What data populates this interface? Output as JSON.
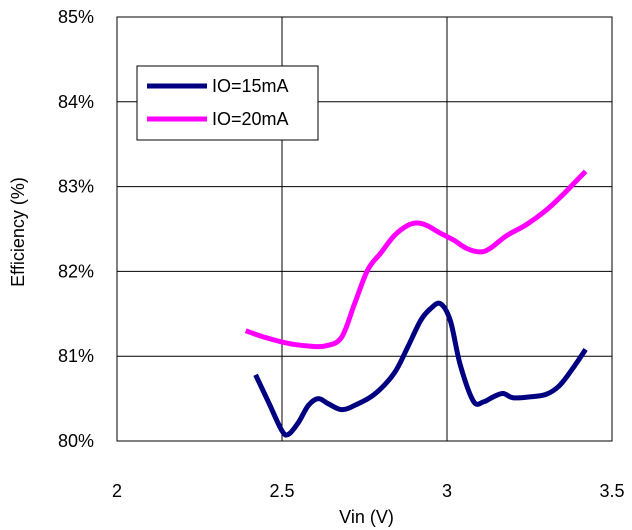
{
  "chart_data": {
    "type": "line",
    "title": "",
    "xlabel": "Vin (V)",
    "ylabel": "Efficiency (%)",
    "xlim": [
      2,
      3.5
    ],
    "ylim": [
      80,
      85
    ],
    "x_ticks": [
      2,
      2.5,
      3,
      3.5
    ],
    "x_tick_labels": [
      "2",
      "2.5",
      "3",
      "3.5"
    ],
    "y_ticks": [
      80,
      81,
      82,
      83,
      84,
      85
    ],
    "y_tick_labels": [
      "80%",
      "81%",
      "82%",
      "83%",
      "84%",
      "85%"
    ],
    "grid": "vertical and horizontal major gridlines",
    "legend_position": "top-left",
    "series": [
      {
        "name": "IO=15mA",
        "color": "#000080",
        "x": [
          2.42,
          2.46,
          2.5,
          2.52,
          2.55,
          2.58,
          2.61,
          2.64,
          2.68,
          2.72,
          2.78,
          2.84,
          2.88,
          2.92,
          2.95,
          2.98,
          3.01,
          3.04,
          3.08,
          3.11,
          3.14,
          3.17,
          3.2,
          3.25,
          3.3,
          3.34,
          3.38,
          3.42
        ],
        "y": [
          80.78,
          80.45,
          80.12,
          80.08,
          80.22,
          80.42,
          80.5,
          80.44,
          80.37,
          80.42,
          80.55,
          80.8,
          81.1,
          81.42,
          81.56,
          81.62,
          81.42,
          80.9,
          80.47,
          80.46,
          80.52,
          80.56,
          80.51,
          80.52,
          80.55,
          80.65,
          80.85,
          81.08
        ]
      },
      {
        "name": "IO=20mA",
        "color": "#FF00FF",
        "x": [
          2.39,
          2.45,
          2.52,
          2.58,
          2.63,
          2.68,
          2.72,
          2.76,
          2.8,
          2.84,
          2.88,
          2.91,
          2.94,
          2.98,
          3.02,
          3.06,
          3.1,
          3.13,
          3.18,
          3.24,
          3.3,
          3.35,
          3.39,
          3.42
        ],
        "y": [
          81.3,
          81.22,
          81.15,
          81.12,
          81.12,
          81.22,
          81.62,
          82.02,
          82.22,
          82.42,
          82.54,
          82.57,
          82.54,
          82.45,
          82.37,
          82.27,
          82.23,
          82.27,
          82.42,
          82.55,
          82.72,
          82.9,
          83.06,
          83.18
        ]
      }
    ]
  }
}
